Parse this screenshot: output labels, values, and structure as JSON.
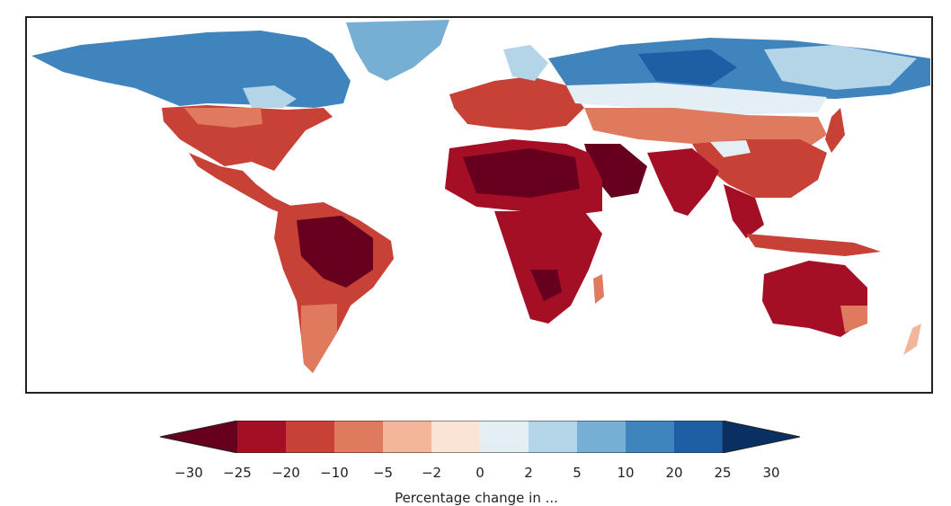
{
  "map": {
    "title": "",
    "colors": {
      "c0": "#67001f",
      "c1": "#a50f26",
      "c2": "#c84136",
      "c3": "#e07a5f",
      "c4": "#f4b69a",
      "c5": "#fbe3d6",
      "c6": "#e3eef5",
      "c7": "#b4d4e8",
      "c8": "#76aed4",
      "c9": "#3f84bd",
      "c10": "#1d5ea5",
      "c11": "#0a2f63"
    }
  },
  "colorbar": {
    "ticks": [
      "−30",
      "−25",
      "−20",
      "−10",
      "−5",
      "−2",
      "0",
      "2",
      "5",
      "10",
      "20",
      "25",
      "30"
    ],
    "label": "Percentage change in ..."
  }
}
